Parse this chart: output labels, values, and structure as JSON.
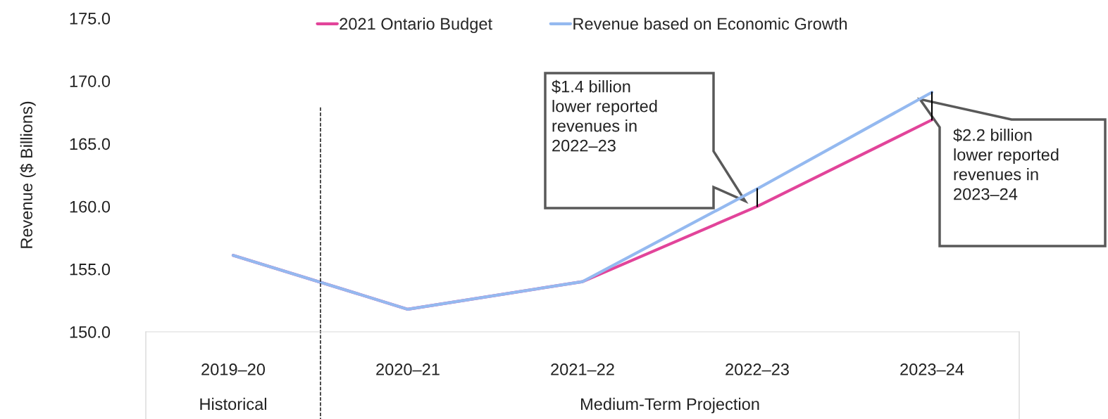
{
  "chart_data": {
    "type": "line",
    "ylabel": "Revenue ($ Billions)",
    "categories": [
      "2019–20",
      "2020–21",
      "2021–22",
      "2022–23",
      "2023–24"
    ],
    "series": [
      {
        "name": "2021 Ontario Budget",
        "color": "#e2449a",
        "values": [
          156.1,
          151.8,
          154.0,
          160.0,
          166.9
        ]
      },
      {
        "name": "Revenue based on Economic Growth",
        "color": "#94b9f0",
        "values": [
          156.1,
          151.8,
          154.0,
          161.4,
          169.1
        ]
      }
    ],
    "ylim": [
      150,
      175
    ],
    "yticks": [
      {
        "value": 150,
        "label": "150.0"
      },
      {
        "value": 155,
        "label": "155.0"
      },
      {
        "value": 160,
        "label": "160.0"
      },
      {
        "value": 165,
        "label": "165.0"
      },
      {
        "value": 170,
        "label": "170.0"
      },
      {
        "value": 175,
        "label": "175.0"
      }
    ],
    "annotations": [
      "$1.4 billion\nlower reported\nrevenues in\n2022–23",
      "$2.2 billion\nlower reported\nrevenues in\n2023–24",
      "Historical",
      "Medium-Term Projection"
    ],
    "legend": "top",
    "grid": false,
    "marker": "none",
    "line_style": "solid"
  }
}
